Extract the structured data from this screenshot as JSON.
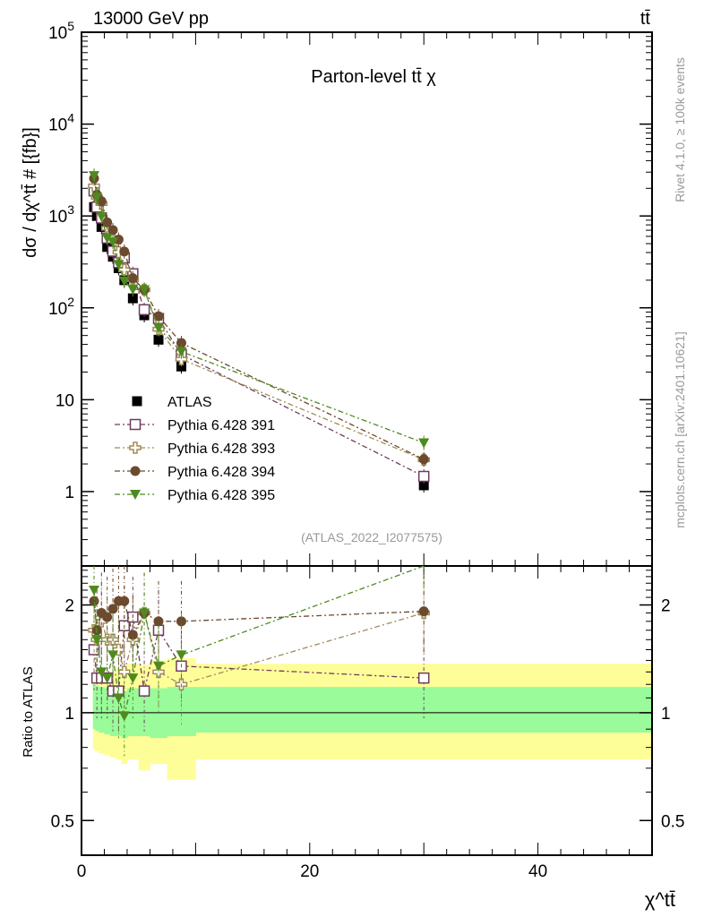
{
  "header": {
    "energy": "13000 GeV pp",
    "process": "tt̄"
  },
  "side": {
    "rivet": "Rivet 4.1.0, ≥ 100k events",
    "mcplots": "mcplots.cern.ch [arXiv:2401.10621]"
  },
  "chart_data": [
    {
      "type": "scatter",
      "title": "Parton-level tt̄ χ",
      "analysis": "(ATLAS_2022_I2077575)",
      "ylabel": "dσ / dχ^tt̄ # [{fb}]",
      "xlabel": "χ^tt̄",
      "yscale": "log",
      "ylim": [
        0.155,
        100000
      ],
      "xlim": [
        0,
        50
      ],
      "yticks": [
        "1",
        "10",
        "10^2",
        "10^3",
        "10^4",
        "10^5"
      ],
      "x_edges": [
        1,
        1.2,
        1.5,
        2,
        2.5,
        3,
        3.5,
        4,
        5,
        6,
        7.5,
        10,
        50
      ],
      "x": [
        1.1,
        1.35,
        1.75,
        2.25,
        2.75,
        3.25,
        3.75,
        4.5,
        5.5,
        6.75,
        8.75,
        30
      ],
      "legend": "lower-left",
      "series": [
        {
          "name": "ATLAS",
          "color": "#000000",
          "marker": "square-filled",
          "values": [
            1250,
            1000,
            760,
            460,
            360,
            270,
            200,
            127,
            83,
            45,
            23,
            1.17
          ]
        },
        {
          "name": "Pythia 6.428 391",
          "color": "#6e3d5e",
          "marker": "square-open",
          "ratio": [
            1.5,
            1.25,
            1.25,
            1.25,
            1.15,
            1.15,
            1.75,
            1.85,
            1.15,
            1.7,
            1.35,
            1.25
          ]
        },
        {
          "name": "Pythia 6.428 393",
          "color": "#a08c55",
          "marker": "cross-open",
          "ratio": [
            1.7,
            1.6,
            1.8,
            1.6,
            1.6,
            1.5,
            1.3,
            1.6,
            1.9,
            1.3,
            1.2,
            1.9
          ]
        },
        {
          "name": "Pythia 6.428 394",
          "color": "#6b4a2e",
          "marker": "circle",
          "ratio": [
            2.05,
            1.7,
            1.9,
            1.85,
            1.95,
            2.05,
            2.05,
            1.65,
            1.9,
            1.8,
            1.8,
            1.92
          ]
        },
        {
          "name": "Pythia 6.428 395",
          "color": "#4e8a1e",
          "marker": "triangle-down",
          "ratio": [
            2.2,
            1.6,
            1.3,
            1.25,
            1.45,
            1.1,
            0.98,
            1.25,
            1.9,
            1.35,
            1.45,
            2.9
          ]
        }
      ]
    },
    {
      "type": "line",
      "ylabel": "Ratio to ATLAS",
      "yscale": "log",
      "ylim": [
        0.4,
        2.57
      ],
      "yticks": [
        "0.5",
        "1",
        "2"
      ],
      "xticks": [
        "0",
        "20",
        "40"
      ],
      "band_inner": {
        "color": "#99fb99",
        "lo": [
          0.9,
          0.89,
          0.88,
          0.87,
          0.86,
          0.86,
          0.85,
          0.86,
          0.86,
          0.85,
          0.86,
          0.88
        ],
        "hi": [
          1.2,
          1.19,
          1.18,
          1.17,
          1.17,
          1.16,
          1.15,
          1.17,
          1.17,
          1.17,
          1.18,
          1.18
        ]
      },
      "band_outer": {
        "color": "#fefe99",
        "lo": [
          0.79,
          0.78,
          0.77,
          0.76,
          0.75,
          0.74,
          0.72,
          0.74,
          0.69,
          0.72,
          0.65,
          0.74
        ],
        "hi": [
          1.28,
          1.28,
          1.27,
          1.29,
          1.3,
          1.33,
          1.35,
          1.37,
          1.36,
          1.4,
          1.42,
          1.37
        ]
      }
    }
  ]
}
